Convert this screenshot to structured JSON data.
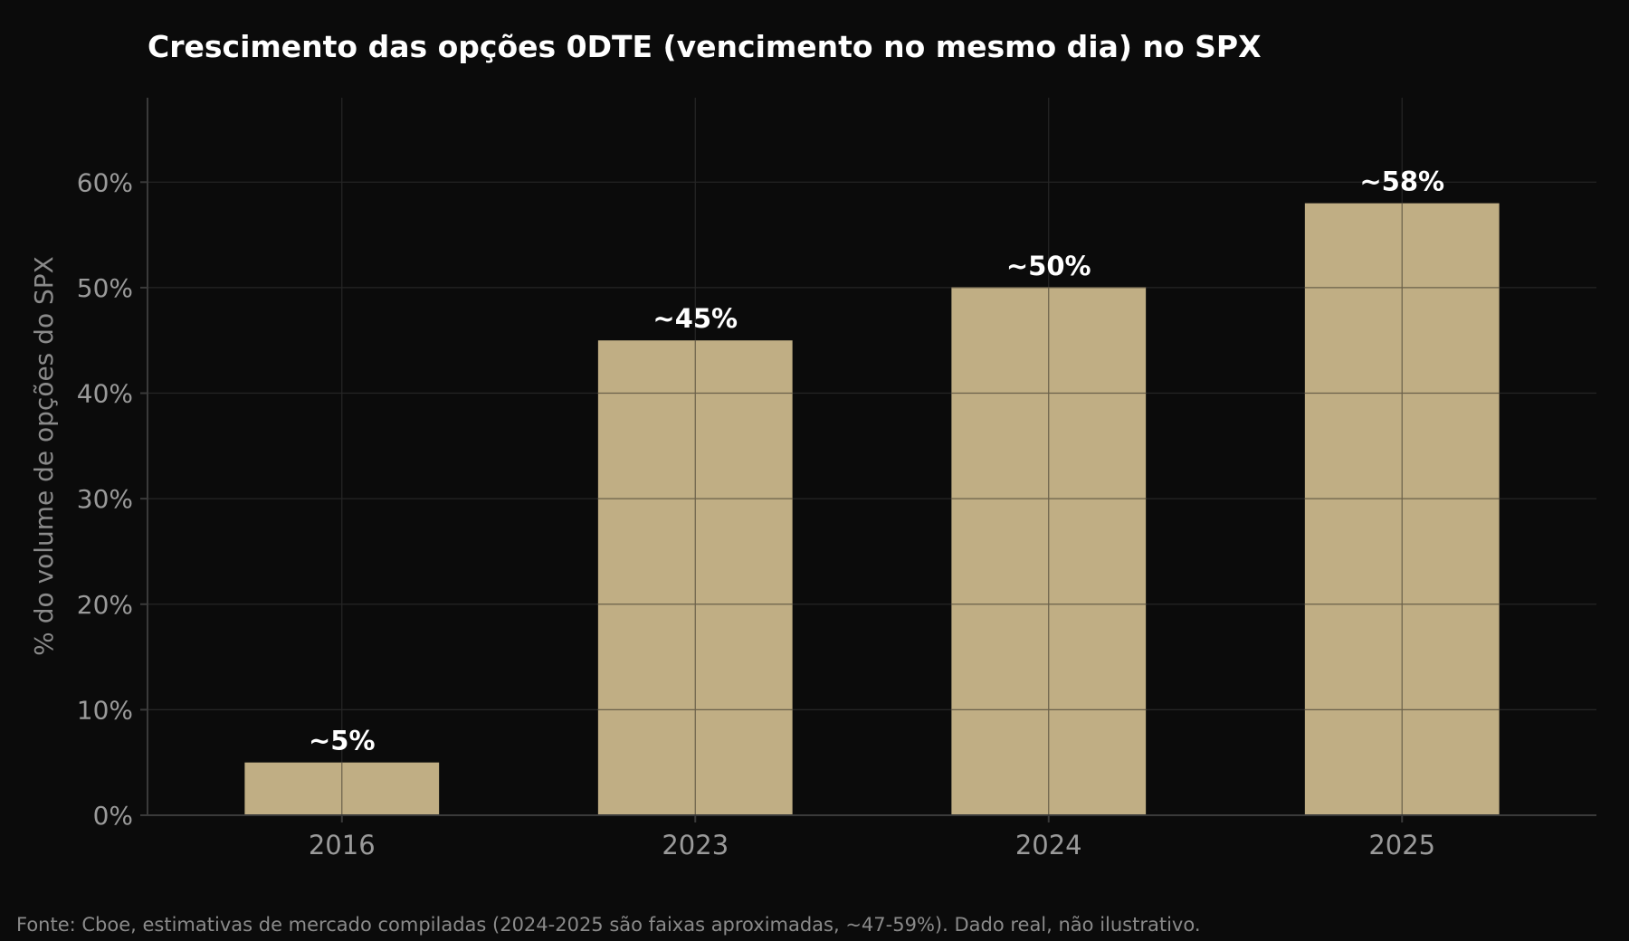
{
  "chart_data": {
    "type": "bar",
    "title": "Crescimento das opções 0DTE (vencimento no mesmo dia) no SPX",
    "xlabel": "",
    "ylabel": "% do volume de opções do SPX",
    "categories": [
      "2016",
      "2023",
      "2024",
      "2025"
    ],
    "values": [
      5,
      45,
      50,
      58
    ],
    "data_labels": [
      "~5%",
      "~45%",
      "~50%",
      "~58%"
    ],
    "ylim": [
      0,
      68
    ],
    "yticks": [
      0,
      10,
      20,
      30,
      40,
      50,
      60
    ],
    "ytick_labels": [
      "0%",
      "10%",
      "20%",
      "30%",
      "40%",
      "50%",
      "60%"
    ],
    "grid": true,
    "source_note": "Fonte: Cboe, estimativas de mercado compiladas (2024-2025 são faixas aproximadas, ~47-59%). Dado real, não ilustrativo.",
    "colors": {
      "background": "#0b0b0b",
      "bar": "#c0ae84",
      "grid": "#262626",
      "bar_grid": "#6a604a",
      "axis": "#3a3a3a",
      "tick_text": "#9a9a9a",
      "title": "#ffffff"
    }
  }
}
